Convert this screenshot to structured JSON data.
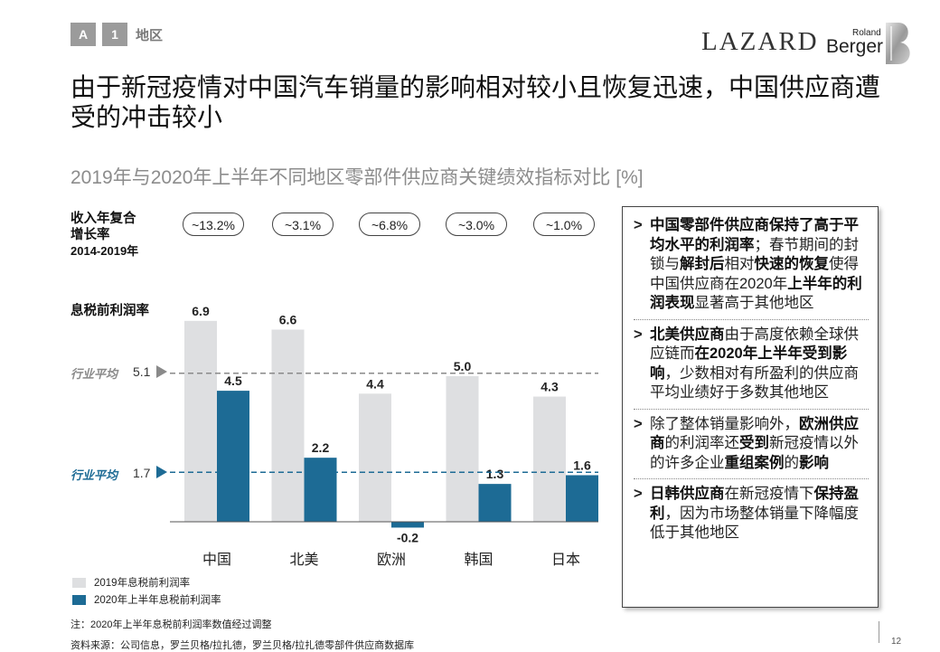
{
  "header": {
    "tag_letter": "A",
    "tag_number": "1",
    "section": "地区",
    "logo_lazard": "LAZARD",
    "logo_roland": "Roland",
    "logo_berger": "Berger"
  },
  "title": "由于新冠疫情对中国汽车销量的影响相对较小且恢复迅速，中国供应商遭受的冲击较小",
  "subtitle": "2019年与2020年上半年不同地区零部件供应商关键绩效指标对比 [%]",
  "kpi": {
    "label_line1": "收入年复合",
    "label_line2": "增长率",
    "label_line3": "2014-2019年",
    "pills": [
      "~13.2%",
      "~3.1%",
      "~6.8%",
      "~3.0%",
      "~1.0%"
    ]
  },
  "ebit_label": "息税前利润率",
  "industry_avg": {
    "label": "行业平均",
    "value_2019": "5.1",
    "value_2020": "1.7"
  },
  "chart_data": {
    "type": "bar",
    "title": "2019年与2020年上半年不同地区零部件供应商关键绩效指标对比 [%]",
    "ylabel": "息税前利润率",
    "categories": [
      "中国",
      "北美",
      "欧洲",
      "韩国",
      "日本"
    ],
    "series": [
      {
        "name": "2019年息税前利润率",
        "color": "#dedfe1",
        "values": [
          6.9,
          6.6,
          4.4,
          5.0,
          4.3
        ],
        "labels": [
          "6.9",
          "6.6",
          "4.4",
          "5.0",
          "4.3"
        ]
      },
      {
        "name": "2020年上半年息税前利润率",
        "color": "#1d6b95",
        "values": [
          4.5,
          2.2,
          -0.2,
          1.3,
          1.6
        ],
        "labels": [
          "4.5",
          "2.2",
          "-0.2",
          "1.3",
          "1.6"
        ]
      }
    ],
    "reference_lines": [
      {
        "name": "行业平均 2019",
        "value": 5.1,
        "color": "#8a8a8a"
      },
      {
        "name": "行业平均 2020",
        "value": 1.7,
        "color": "#1d6b95"
      }
    ],
    "ylim": [
      -0.2,
      6.9
    ]
  },
  "legend": {
    "item1": "2019年息税前利润率",
    "item2": "2020年上半年息税前利润率"
  },
  "panel": {
    "b1": {
      "p1": "中国零部件供应商保持了高于平均水平的利润率",
      "p2": "；春节期间的封锁与",
      "p3": "解封后",
      "p4": "相对",
      "p5": "快速的恢复",
      "p6": "使得中国供应商在2020年",
      "p7": "上半年的利润表现",
      "p8": "显著高于其他地区"
    },
    "b2": {
      "p1": "北美供应商",
      "p2": "由于高度依赖全球供应链而",
      "p3": "在2020年上半年受到影响",
      "p4": "，少数相对有所盈利的供应商平均业绩好于多数其他地区"
    },
    "b3": {
      "p1": "除了整体销量影响外，",
      "p2": "欧洲供应商",
      "p3": "的利润率还",
      "p4": "受到",
      "p5": "新冠疫情以外的许多企业",
      "p6": "重组案例",
      "p7": "的",
      "p8": "影响"
    },
    "b4": {
      "p1": "日韩供应商",
      "p2": "在新冠疫情下",
      "p3": "保持盈利",
      "p4": "，因为市场整体销量下降幅度低于其他地区"
    }
  },
  "notes": {
    "note": "注：2020年上半年息税前利润率数值经过调整",
    "source": "资料来源：公司信息，罗兰贝格/拉扎德，罗兰贝格/拉扎德零部件供应商数据库"
  },
  "page_number": "12",
  "colors": {
    "bar_2019": "#dedfe1",
    "bar_2020": "#1d6b95",
    "tag_gray": "#9b9b9b"
  }
}
